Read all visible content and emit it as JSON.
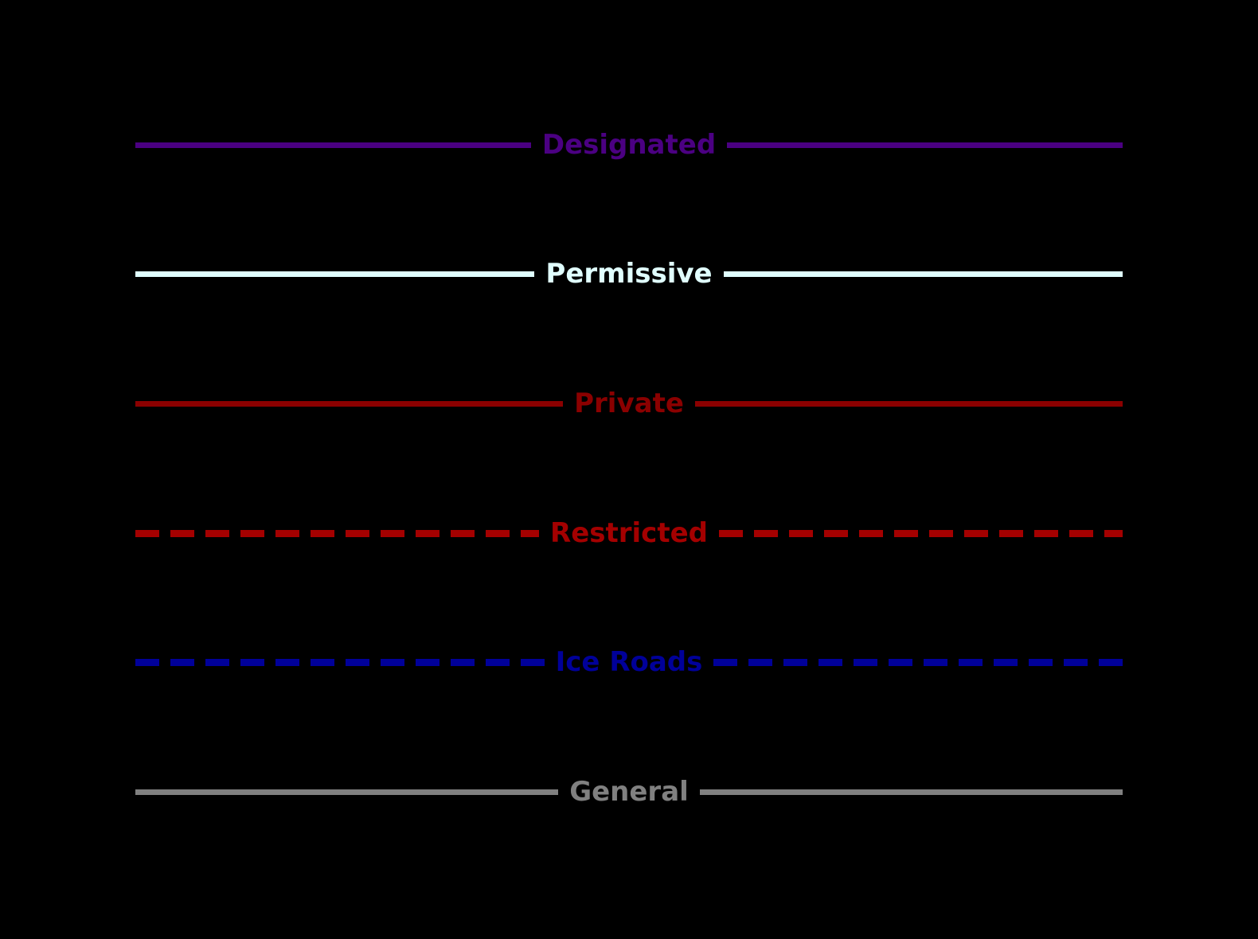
{
  "canvas": {
    "background_color": "#000000"
  },
  "legend": {
    "items": [
      {
        "label": "Designated",
        "color": "#4B0082",
        "line_style": "solid"
      },
      {
        "label": "Permissive",
        "color": "#E0FFFF",
        "line_style": "solid"
      },
      {
        "label": "Private",
        "color": "#8B0000",
        "line_style": "solid"
      },
      {
        "label": "Restricted",
        "color": "#A40000",
        "line_style": "dashed"
      },
      {
        "label": "Ice Roads",
        "color": "#000099",
        "line_style": "dashed"
      },
      {
        "label": "General",
        "color": "#808080",
        "line_style": "solid"
      }
    ]
  }
}
